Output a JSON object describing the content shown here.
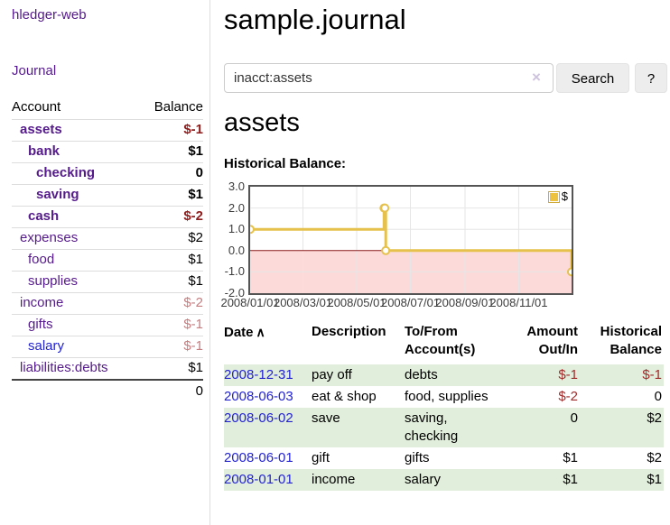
{
  "colors": {
    "accent_purple": "#551a8b",
    "link_blue": "#2323cf",
    "negative_strong": "#8f1d1d",
    "negative_soft": "#c47e80",
    "negative_table": "#a02b2b",
    "row_shade_green": "#e2eedc",
    "chart_gold": "#e6c14c"
  },
  "app": {
    "title": "hledger-web"
  },
  "sidebar": {
    "nav_journal": "Journal",
    "accounts_table": {
      "header": {
        "account": "Account",
        "balance": "Balance"
      },
      "rows": [
        {
          "label": "assets",
          "indent": 1,
          "bold": true,
          "label_class": "lbl-purple",
          "balance": "$-1",
          "balance_class": "bal-neg-strong"
        },
        {
          "label": "bank",
          "indent": 2,
          "bold": true,
          "label_class": "lbl-purple",
          "balance": "$1",
          "balance_class": "bal-pos"
        },
        {
          "label": "checking",
          "indent": 3,
          "bold": true,
          "label_class": "lbl-purple",
          "balance": "0",
          "balance_class": "bal-pos"
        },
        {
          "label": "saving",
          "indent": 3,
          "bold": true,
          "label_class": "lbl-purple",
          "balance": "$1",
          "balance_class": "bal-pos"
        },
        {
          "label": "cash",
          "indent": 2,
          "bold": true,
          "label_class": "lbl-purple",
          "balance": "$-2",
          "balance_class": "bal-neg-strong"
        },
        {
          "label": "expenses",
          "indent": 1,
          "bold": false,
          "label_class": "lbl-purple",
          "balance": "$2",
          "balance_class": "bal-pos"
        },
        {
          "label": "food",
          "indent": 2,
          "bold": false,
          "label_class": "lbl-purple",
          "balance": "$1",
          "balance_class": "bal-pos"
        },
        {
          "label": "supplies",
          "indent": 2,
          "bold": false,
          "label_class": "lbl-purple",
          "balance": "$1",
          "balance_class": "bal-pos"
        },
        {
          "label": "income",
          "indent": 1,
          "bold": false,
          "label_class": "lbl-purple",
          "balance": "$-2",
          "balance_class": "bal-neg-soft"
        },
        {
          "label": "gifts",
          "indent": 2,
          "bold": false,
          "label_class": "lbl-purple",
          "balance": "$-1",
          "balance_class": "bal-neg-soft"
        },
        {
          "label": "salary",
          "indent": 2,
          "bold": false,
          "label_class": "lbl-blue",
          "balance": "$-1",
          "balance_class": "bal-neg-soft"
        },
        {
          "label": "liabilities:debts",
          "indent": 1,
          "bold": false,
          "label_class": "lbl-purple",
          "balance": "$1",
          "balance_class": "bal-pos"
        }
      ],
      "total": "0"
    }
  },
  "main": {
    "title": "sample.journal",
    "search": {
      "query": "inacct:assets",
      "clear_icon": "×",
      "search_label": "Search",
      "help_label": "?"
    },
    "account_heading": "assets",
    "chart_label": "Historical Balance:"
  },
  "chart_data": {
    "type": "line",
    "step": true,
    "title": "Historical Balance",
    "series": [
      {
        "name": "$",
        "color": "#e6c14c",
        "points": [
          [
            "2008-01-01",
            1
          ],
          [
            "2008-06-01",
            2
          ],
          [
            "2008-06-02",
            2
          ],
          [
            "2008-06-03",
            0
          ],
          [
            "2008-12-31",
            -1
          ]
        ]
      }
    ],
    "x_ticks": [
      "2008/01/01",
      "2008/03/01",
      "2008/05/01",
      "2008/07/01",
      "2008/09/01",
      "2008/11/01"
    ],
    "y_ticks": [
      "3.0",
      "2.0",
      "1.0",
      "0.0",
      "-1.0",
      "-2.0"
    ],
    "y_tick_values": [
      3,
      2,
      1,
      0,
      -1,
      -2
    ],
    "ylim": [
      -2,
      3
    ],
    "xlim": [
      "2008-01-01",
      "2008-12-31"
    ],
    "grid": true,
    "grid_color": "#e6e6e6",
    "negative_fill": "#fcdada",
    "zero_line_color": "#8b1a1a",
    "legend": {
      "position": "top-right",
      "label": "$",
      "swatch_color": "#edc240"
    }
  },
  "register": {
    "headers": {
      "date": "Date",
      "sort_icon": "∧",
      "description": "Description",
      "to_from_1": "To/From",
      "to_from_2": "Account(s)",
      "amount_1": "Amount",
      "amount_2": "Out/In",
      "balance_1": "Historical",
      "balance_2": "Balance"
    },
    "rows": [
      {
        "date": "2008-12-31",
        "description": "pay off",
        "to_from": "debts",
        "amount": "$-1",
        "amount_class": "neg",
        "balance": "$-1",
        "balance_class": "neg",
        "shaded": true
      },
      {
        "date": "2008-06-03",
        "description": "eat & shop",
        "to_from": "food, supplies",
        "amount": "$-2",
        "amount_class": "neg",
        "balance": "0",
        "balance_class": "pos",
        "shaded": false
      },
      {
        "date": "2008-06-02",
        "description": "save",
        "to_from": "saving, checking",
        "amount": "0",
        "amount_class": "pos",
        "balance": "$2",
        "balance_class": "pos",
        "shaded": true
      },
      {
        "date": "2008-06-01",
        "description": "gift",
        "to_from": "gifts",
        "amount": "$1",
        "amount_class": "pos",
        "balance": "$2",
        "balance_class": "pos",
        "shaded": false
      },
      {
        "date": "2008-01-01",
        "description": "income",
        "to_from": "salary",
        "amount": "$1",
        "amount_class": "pos",
        "balance": "$1",
        "balance_class": "pos",
        "shaded": true
      }
    ]
  }
}
